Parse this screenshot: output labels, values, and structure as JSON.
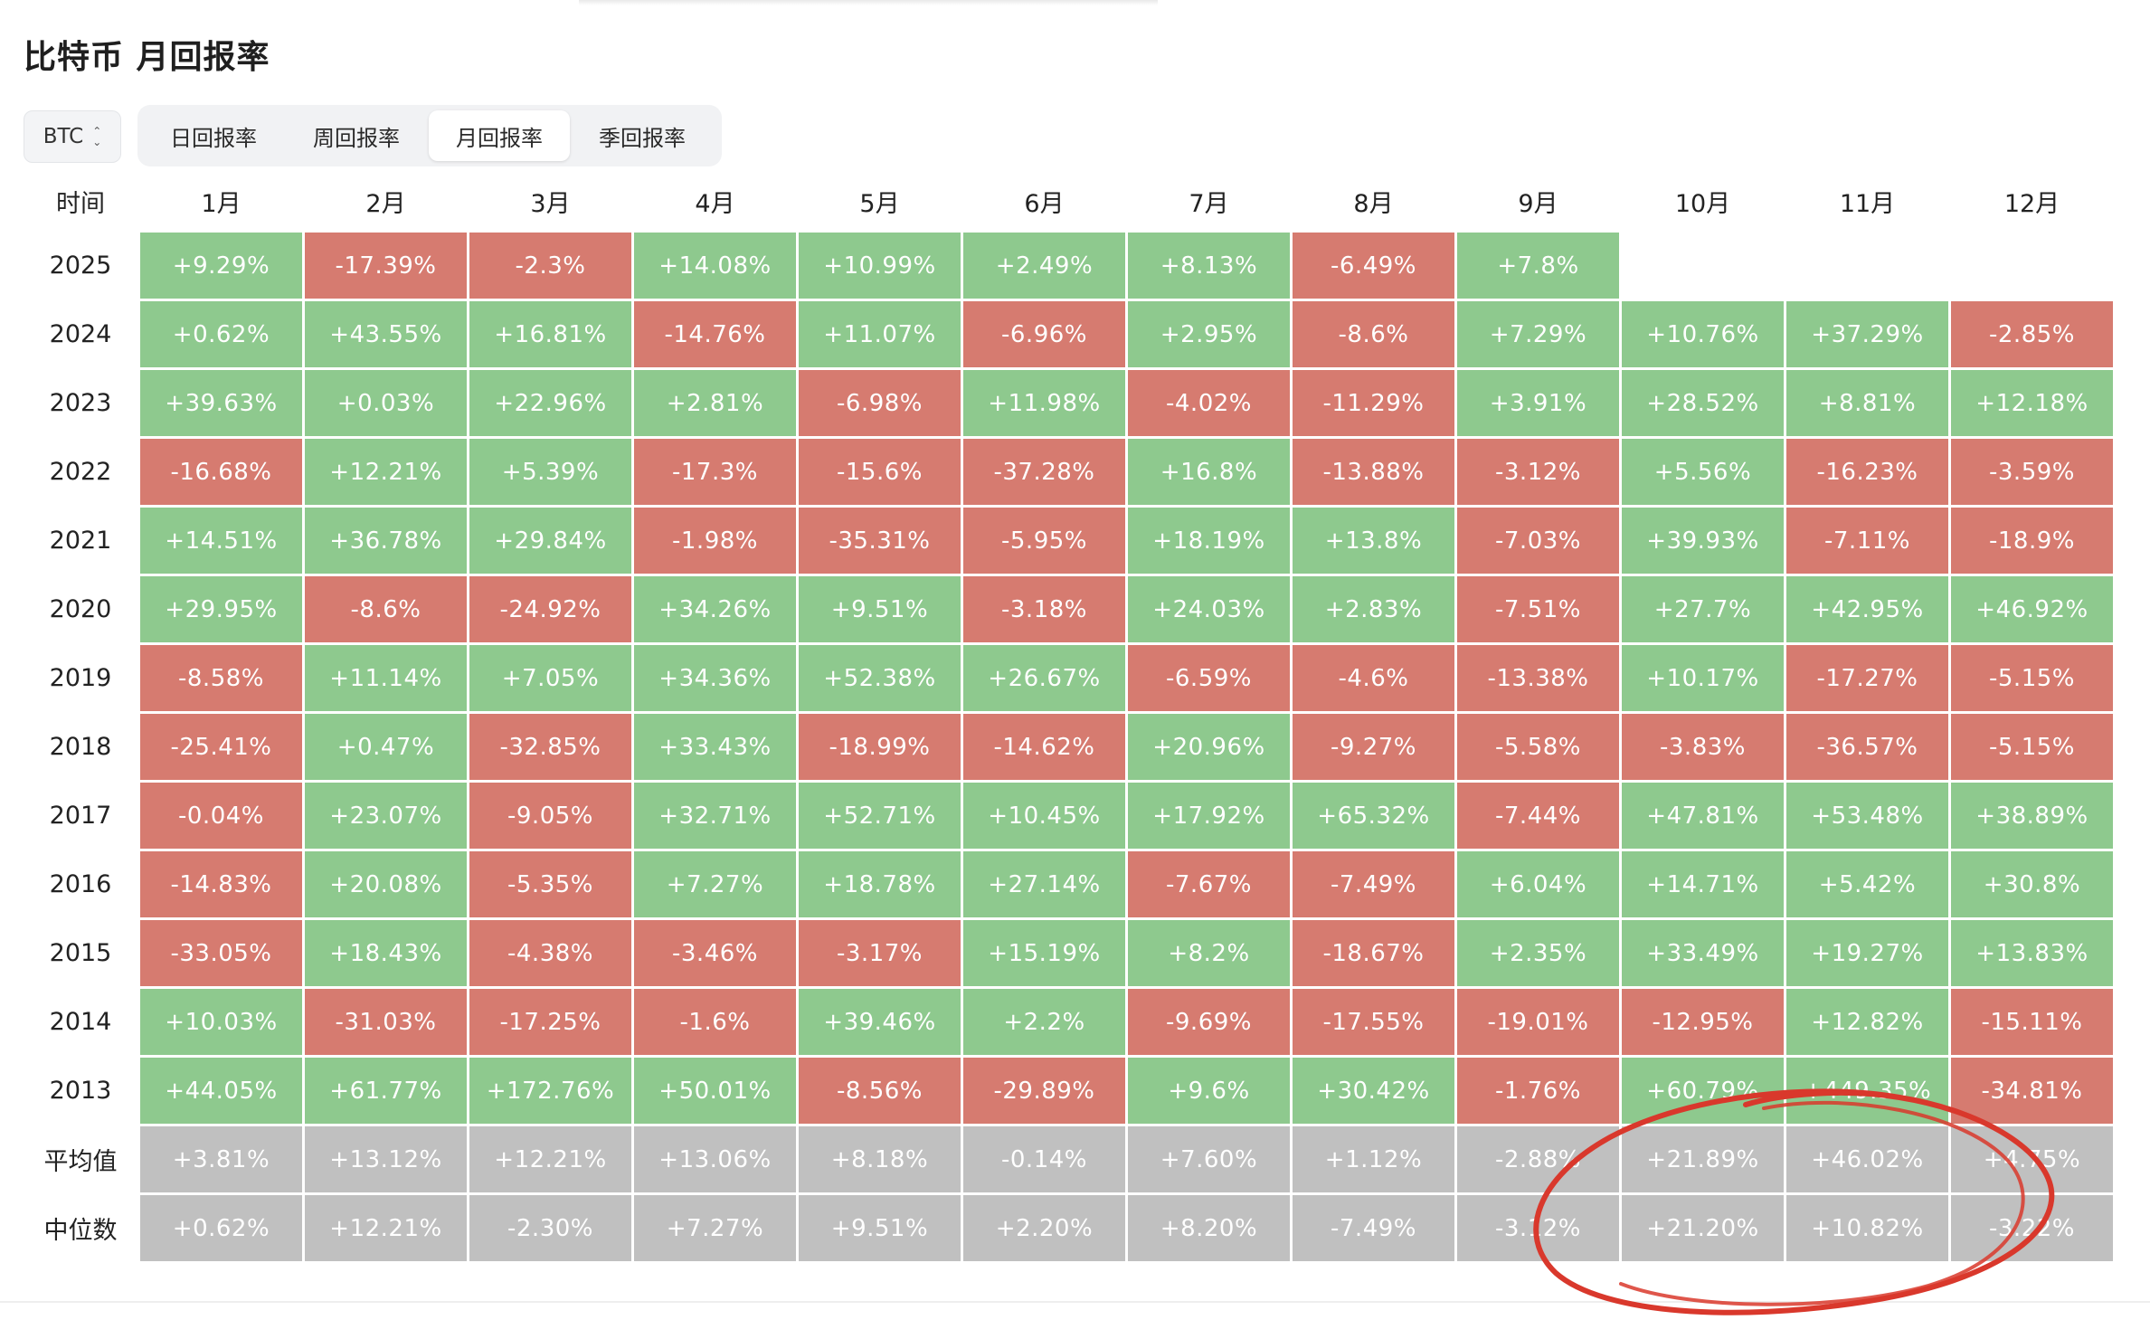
{
  "title": "比特币 月回报率",
  "asset_select": {
    "value": "BTC"
  },
  "tabs": [
    {
      "label": "日回报率",
      "active": false
    },
    {
      "label": "周回报率",
      "active": false
    },
    {
      "label": "月回报率",
      "active": true
    },
    {
      "label": "季回报率",
      "active": false
    }
  ],
  "table": {
    "corner_label": "时间",
    "columns": [
      "1月",
      "2月",
      "3月",
      "4月",
      "5月",
      "6月",
      "7月",
      "8月",
      "9月",
      "10月",
      "11月",
      "12月"
    ],
    "rows": [
      {
        "label": "2025",
        "values": [
          "+9.29%",
          "-17.39%",
          "-2.3%",
          "+14.08%",
          "+10.99%",
          "+2.49%",
          "+8.13%",
          "-6.49%",
          "+7.8%",
          "",
          "",
          ""
        ]
      },
      {
        "label": "2024",
        "values": [
          "+0.62%",
          "+43.55%",
          "+16.81%",
          "-14.76%",
          "+11.07%",
          "-6.96%",
          "+2.95%",
          "-8.6%",
          "+7.29%",
          "+10.76%",
          "+37.29%",
          "-2.85%"
        ]
      },
      {
        "label": "2023",
        "values": [
          "+39.63%",
          "+0.03%",
          "+22.96%",
          "+2.81%",
          "-6.98%",
          "+11.98%",
          "-4.02%",
          "-11.29%",
          "+3.91%",
          "+28.52%",
          "+8.81%",
          "+12.18%"
        ]
      },
      {
        "label": "2022",
        "values": [
          "-16.68%",
          "+12.21%",
          "+5.39%",
          "-17.3%",
          "-15.6%",
          "-37.28%",
          "+16.8%",
          "-13.88%",
          "-3.12%",
          "+5.56%",
          "-16.23%",
          "-3.59%"
        ]
      },
      {
        "label": "2021",
        "values": [
          "+14.51%",
          "+36.78%",
          "+29.84%",
          "-1.98%",
          "-35.31%",
          "-5.95%",
          "+18.19%",
          "+13.8%",
          "-7.03%",
          "+39.93%",
          "-7.11%",
          "-18.9%"
        ]
      },
      {
        "label": "2020",
        "values": [
          "+29.95%",
          "-8.6%",
          "-24.92%",
          "+34.26%",
          "+9.51%",
          "-3.18%",
          "+24.03%",
          "+2.83%",
          "-7.51%",
          "+27.7%",
          "+42.95%",
          "+46.92%"
        ]
      },
      {
        "label": "2019",
        "values": [
          "-8.58%",
          "+11.14%",
          "+7.05%",
          "+34.36%",
          "+52.38%",
          "+26.67%",
          "-6.59%",
          "-4.6%",
          "-13.38%",
          "+10.17%",
          "-17.27%",
          "-5.15%"
        ]
      },
      {
        "label": "2018",
        "values": [
          "-25.41%",
          "+0.47%",
          "-32.85%",
          "+33.43%",
          "-18.99%",
          "-14.62%",
          "+20.96%",
          "-9.27%",
          "-5.58%",
          "-3.83%",
          "-36.57%",
          "-5.15%"
        ]
      },
      {
        "label": "2017",
        "values": [
          "-0.04%",
          "+23.07%",
          "-9.05%",
          "+32.71%",
          "+52.71%",
          "+10.45%",
          "+17.92%",
          "+65.32%",
          "-7.44%",
          "+47.81%",
          "+53.48%",
          "+38.89%"
        ]
      },
      {
        "label": "2016",
        "values": [
          "-14.83%",
          "+20.08%",
          "-5.35%",
          "+7.27%",
          "+18.78%",
          "+27.14%",
          "-7.67%",
          "-7.49%",
          "+6.04%",
          "+14.71%",
          "+5.42%",
          "+30.8%"
        ]
      },
      {
        "label": "2015",
        "values": [
          "-33.05%",
          "+18.43%",
          "-4.38%",
          "-3.46%",
          "-3.17%",
          "+15.19%",
          "+8.2%",
          "-18.67%",
          "+2.35%",
          "+33.49%",
          "+19.27%",
          "+13.83%"
        ]
      },
      {
        "label": "2014",
        "values": [
          "+10.03%",
          "-31.03%",
          "-17.25%",
          "-1.6%",
          "+39.46%",
          "+2.2%",
          "-9.69%",
          "-17.55%",
          "-19.01%",
          "-12.95%",
          "+12.82%",
          "-15.11%"
        ]
      },
      {
        "label": "2013",
        "values": [
          "+44.05%",
          "+61.77%",
          "+172.76%",
          "+50.01%",
          "-8.56%",
          "-29.89%",
          "+9.6%",
          "+30.42%",
          "-1.76%",
          "+60.79%",
          "+449.35%",
          "-34.81%"
        ]
      }
    ],
    "stats": [
      {
        "label": "平均值",
        "values": [
          "+3.81%",
          "+13.12%",
          "+12.21%",
          "+13.06%",
          "+8.18%",
          "-0.14%",
          "+7.60%",
          "+1.12%",
          "-2.88%",
          "+21.89%",
          "+46.02%",
          "+4.75%"
        ]
      },
      {
        "label": "中位数",
        "values": [
          "+0.62%",
          "+12.21%",
          "-2.30%",
          "+7.27%",
          "+9.51%",
          "+2.20%",
          "+8.20%",
          "-7.49%",
          "-3.12%",
          "+21.20%",
          "+10.82%",
          "-3.22%"
        ]
      }
    ]
  },
  "colors": {
    "positive": "#8ec98e",
    "negative": "#d67b70",
    "stat": "#c0c0c0",
    "annotation": "#d9382c"
  }
}
